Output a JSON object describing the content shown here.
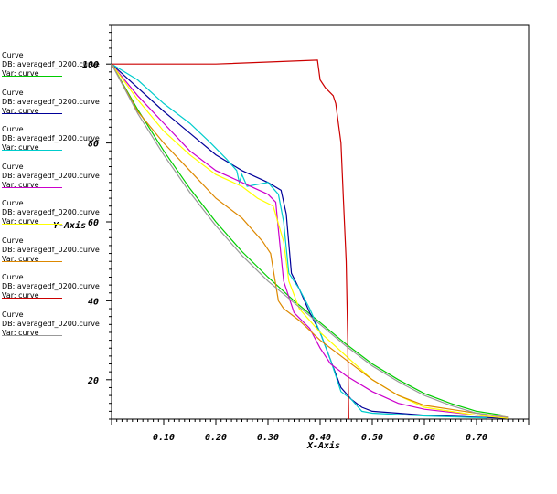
{
  "chart_data": {
    "type": "line",
    "title": "",
    "xlabel": "X-Axis",
    "ylabel": "Y-Axis",
    "xlim": [
      0.0,
      0.8
    ],
    "ylim": [
      10,
      110
    ],
    "x_ticks": [
      "0.10",
      "0.20",
      "0.30",
      "0.40",
      "0.50",
      "0.60",
      "0.70"
    ],
    "y_ticks": [
      "20",
      "40",
      "60",
      "80",
      "100"
    ],
    "legend_position": "left",
    "series": [
      {
        "name": "Curve\nDB: averagedf_0200.curve\nVar: curve",
        "color": "#00cc00",
        "points": [
          [
            0.0,
            100
          ],
          [
            0.05,
            88.5
          ],
          [
            0.1,
            78
          ],
          [
            0.15,
            68.5
          ],
          [
            0.2,
            60
          ],
          [
            0.25,
            52.5
          ],
          [
            0.3,
            46
          ],
          [
            0.35,
            40
          ],
          [
            0.4,
            34.5
          ],
          [
            0.45,
            29
          ],
          [
            0.5,
            24
          ],
          [
            0.55,
            20
          ],
          [
            0.6,
            16.5
          ],
          [
            0.65,
            14
          ],
          [
            0.7,
            12
          ],
          [
            0.75,
            11
          ]
        ]
      },
      {
        "name": "Curve\nDB: averagedf_0200.curve\nVar: curve",
        "color": "#000099",
        "points": [
          [
            0.0,
            100
          ],
          [
            0.05,
            94
          ],
          [
            0.1,
            88
          ],
          [
            0.15,
            82.5
          ],
          [
            0.2,
            77
          ],
          [
            0.25,
            73
          ],
          [
            0.3,
            70
          ],
          [
            0.325,
            68
          ],
          [
            0.335,
            62
          ],
          [
            0.345,
            47
          ],
          [
            0.36,
            43
          ],
          [
            0.38,
            37
          ],
          [
            0.4,
            32
          ],
          [
            0.42,
            25
          ],
          [
            0.44,
            18
          ],
          [
            0.46,
            15
          ],
          [
            0.48,
            13
          ],
          [
            0.5,
            12
          ],
          [
            0.55,
            11.5
          ],
          [
            0.6,
            11
          ],
          [
            0.7,
            10.5
          ],
          [
            0.76,
            10.2
          ]
        ]
      },
      {
        "name": "Curve\nDB: averagedf_0200.curve\nVar: curve",
        "color": "#00cccc",
        "points": [
          [
            0.0,
            100
          ],
          [
            0.05,
            96
          ],
          [
            0.1,
            90
          ],
          [
            0.15,
            85
          ],
          [
            0.19,
            80
          ],
          [
            0.22,
            76
          ],
          [
            0.24,
            73
          ],
          [
            0.245,
            70
          ],
          [
            0.25,
            72
          ],
          [
            0.26,
            69
          ],
          [
            0.3,
            70
          ],
          [
            0.32,
            67
          ],
          [
            0.33,
            60
          ],
          [
            0.34,
            47
          ],
          [
            0.36,
            43
          ],
          [
            0.38,
            38
          ],
          [
            0.4,
            32
          ],
          [
            0.42,
            25
          ],
          [
            0.44,
            17
          ],
          [
            0.46,
            15
          ],
          [
            0.48,
            12
          ],
          [
            0.5,
            11.5
          ],
          [
            0.6,
            10.8
          ],
          [
            0.72,
            10.3
          ]
        ]
      },
      {
        "name": "Curve\nDB: averagedf_0200.curve\nVar: curve",
        "color": "#cc00cc",
        "points": [
          [
            0.0,
            100
          ],
          [
            0.05,
            92
          ],
          [
            0.1,
            85
          ],
          [
            0.15,
            78
          ],
          [
            0.2,
            73
          ],
          [
            0.25,
            70
          ],
          [
            0.3,
            67
          ],
          [
            0.315,
            65
          ],
          [
            0.32,
            58
          ],
          [
            0.33,
            45
          ],
          [
            0.35,
            37
          ],
          [
            0.38,
            33
          ],
          [
            0.4,
            28
          ],
          [
            0.42,
            24
          ],
          [
            0.45,
            21
          ],
          [
            0.5,
            17
          ],
          [
            0.55,
            14
          ],
          [
            0.6,
            12.5
          ],
          [
            0.7,
            11
          ],
          [
            0.76,
            10.3
          ]
        ]
      },
      {
        "name": "Curve\nDB: averagedf_0200.curve\nVar: curve",
        "color": "#ffff00",
        "points": [
          [
            0.0,
            100
          ],
          [
            0.05,
            91
          ],
          [
            0.1,
            83
          ],
          [
            0.15,
            77
          ],
          [
            0.2,
            72
          ],
          [
            0.25,
            69
          ],
          [
            0.28,
            66
          ],
          [
            0.31,
            64
          ],
          [
            0.33,
            55
          ],
          [
            0.34,
            45
          ],
          [
            0.36,
            38
          ],
          [
            0.4,
            32
          ],
          [
            0.45,
            26
          ],
          [
            0.5,
            20
          ],
          [
            0.55,
            16
          ],
          [
            0.6,
            13
          ],
          [
            0.7,
            11
          ],
          [
            0.76,
            10.2
          ]
        ]
      },
      {
        "name": "Curve\nDB: averagedf_0200.curve\nVar: curve",
        "color": "#dd8800",
        "points": [
          [
            0.0,
            100
          ],
          [
            0.05,
            88
          ],
          [
            0.1,
            80
          ],
          [
            0.15,
            73
          ],
          [
            0.2,
            66
          ],
          [
            0.25,
            61
          ],
          [
            0.29,
            55
          ],
          [
            0.305,
            52
          ],
          [
            0.31,
            48
          ],
          [
            0.32,
            40
          ],
          [
            0.33,
            38
          ],
          [
            0.36,
            35
          ],
          [
            0.4,
            30
          ],
          [
            0.45,
            25
          ],
          [
            0.5,
            20
          ],
          [
            0.55,
            16
          ],
          [
            0.6,
            13.5
          ],
          [
            0.7,
            11.5
          ],
          [
            0.76,
            10.5
          ]
        ]
      },
      {
        "name": "Curve\nDB: averagedf_0200.curve\nVar: curve",
        "color": "#cc0000",
        "points": [
          [
            0.0,
            100
          ],
          [
            0.1,
            100
          ],
          [
            0.2,
            100
          ],
          [
            0.3,
            100.5
          ],
          [
            0.395,
            101
          ],
          [
            0.4,
            96
          ],
          [
            0.41,
            94
          ],
          [
            0.425,
            92
          ],
          [
            0.43,
            90
          ],
          [
            0.44,
            80
          ],
          [
            0.445,
            65
          ],
          [
            0.45,
            50
          ],
          [
            0.453,
            30
          ],
          [
            0.455,
            10
          ]
        ]
      },
      {
        "name": "Curve\nDB: averagedf_0200.curve\nVar: curve",
        "color": "#999999",
        "points": [
          [
            0.0,
            100
          ],
          [
            0.05,
            87.5
          ],
          [
            0.1,
            77
          ],
          [
            0.15,
            67.5
          ],
          [
            0.2,
            59
          ],
          [
            0.25,
            51.5
          ],
          [
            0.3,
            45
          ],
          [
            0.35,
            39.5
          ],
          [
            0.4,
            34
          ],
          [
            0.45,
            28.5
          ],
          [
            0.5,
            23.5
          ],
          [
            0.55,
            19.5
          ],
          [
            0.6,
            16
          ],
          [
            0.65,
            13.5
          ],
          [
            0.7,
            11.5
          ],
          [
            0.76,
            10.5
          ]
        ]
      }
    ]
  }
}
